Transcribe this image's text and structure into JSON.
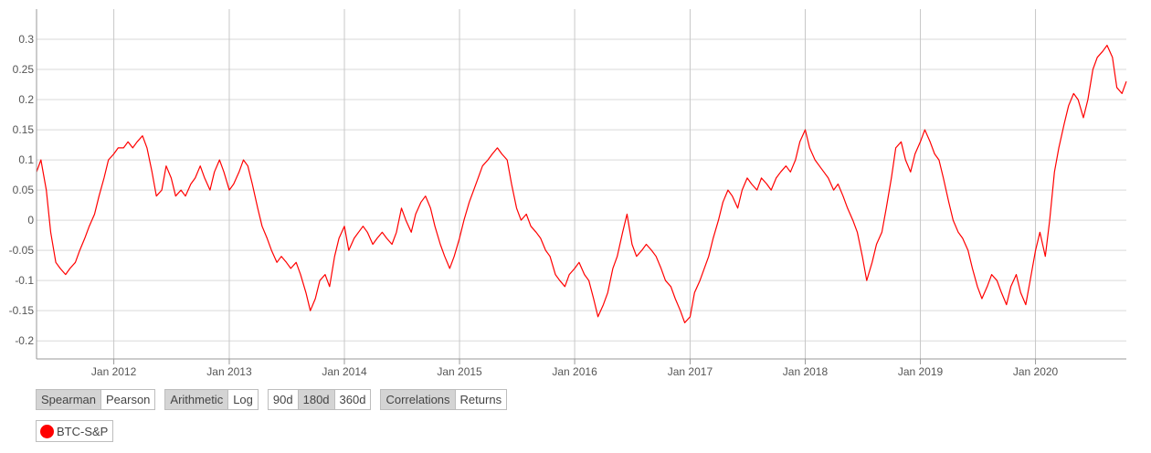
{
  "chart_data": {
    "type": "line",
    "title": "",
    "xlabel": "",
    "ylabel": "",
    "xlim": [
      "2011-05-01",
      "2020-10-15"
    ],
    "ylim": [
      -0.23,
      0.35
    ],
    "x_ticks": [
      "Jan 2012",
      "Jan 2013",
      "Jan 2014",
      "Jan 2015",
      "Jan 2016",
      "Jan 2017",
      "Jan 2018",
      "Jan 2019",
      "Jan 2020"
    ],
    "y_ticks": [
      "0.3",
      "0.25",
      "0.2",
      "0.15",
      "0.1",
      "0.05",
      "0",
      "-0.05",
      "-0.1",
      "-0.15",
      "-0.2"
    ],
    "grid": true,
    "legend_position": "bottom-left",
    "series": [
      {
        "name": "BTC-S&P",
        "color": "#ff0000",
        "points": [
          [
            "2011-05-01",
            0.08
          ],
          [
            "2011-05-15",
            0.1
          ],
          [
            "2011-06-01",
            0.05
          ],
          [
            "2011-06-15",
            -0.02
          ],
          [
            "2011-07-01",
            -0.07
          ],
          [
            "2011-07-15",
            -0.08
          ],
          [
            "2011-08-01",
            -0.09
          ],
          [
            "2011-08-15",
            -0.08
          ],
          [
            "2011-09-01",
            -0.07
          ],
          [
            "2011-09-15",
            -0.05
          ],
          [
            "2011-10-01",
            -0.03
          ],
          [
            "2011-10-15",
            -0.01
          ],
          [
            "2011-11-01",
            0.01
          ],
          [
            "2011-11-15",
            0.04
          ],
          [
            "2011-12-01",
            0.07
          ],
          [
            "2011-12-15",
            0.1
          ],
          [
            "2012-01-01",
            0.11
          ],
          [
            "2012-01-15",
            0.12
          ],
          [
            "2012-02-01",
            0.12
          ],
          [
            "2012-02-15",
            0.13
          ],
          [
            "2012-03-01",
            0.12
          ],
          [
            "2012-03-15",
            0.13
          ],
          [
            "2012-04-01",
            0.14
          ],
          [
            "2012-04-15",
            0.12
          ],
          [
            "2012-05-01",
            0.08
          ],
          [
            "2012-05-15",
            0.04
          ],
          [
            "2012-06-01",
            0.05
          ],
          [
            "2012-06-15",
            0.09
          ],
          [
            "2012-07-01",
            0.07
          ],
          [
            "2012-07-15",
            0.04
          ],
          [
            "2012-08-01",
            0.05
          ],
          [
            "2012-08-15",
            0.04
          ],
          [
            "2012-09-01",
            0.06
          ],
          [
            "2012-09-15",
            0.07
          ],
          [
            "2012-10-01",
            0.09
          ],
          [
            "2012-10-15",
            0.07
          ],
          [
            "2012-11-01",
            0.05
          ],
          [
            "2012-11-15",
            0.08
          ],
          [
            "2012-12-01",
            0.1
          ],
          [
            "2012-12-15",
            0.08
          ],
          [
            "2013-01-01",
            0.05
          ],
          [
            "2013-01-15",
            0.06
          ],
          [
            "2013-02-01",
            0.08
          ],
          [
            "2013-02-15",
            0.1
          ],
          [
            "2013-03-01",
            0.09
          ],
          [
            "2013-03-15",
            0.06
          ],
          [
            "2013-04-01",
            0.02
          ],
          [
            "2013-04-15",
            -0.01
          ],
          [
            "2013-05-01",
            -0.03
          ],
          [
            "2013-05-15",
            -0.05
          ],
          [
            "2013-06-01",
            -0.07
          ],
          [
            "2013-06-15",
            -0.06
          ],
          [
            "2013-07-01",
            -0.07
          ],
          [
            "2013-07-15",
            -0.08
          ],
          [
            "2013-08-01",
            -0.07
          ],
          [
            "2013-08-15",
            -0.09
          ],
          [
            "2013-09-01",
            -0.12
          ],
          [
            "2013-09-15",
            -0.15
          ],
          [
            "2013-10-01",
            -0.13
          ],
          [
            "2013-10-15",
            -0.1
          ],
          [
            "2013-11-01",
            -0.09
          ],
          [
            "2013-11-15",
            -0.11
          ],
          [
            "2013-12-01",
            -0.06
          ],
          [
            "2013-12-15",
            -0.03
          ],
          [
            "2014-01-01",
            -0.01
          ],
          [
            "2014-01-15",
            -0.05
          ],
          [
            "2014-02-01",
            -0.03
          ],
          [
            "2014-02-15",
            -0.02
          ],
          [
            "2014-03-01",
            -0.01
          ],
          [
            "2014-03-15",
            -0.02
          ],
          [
            "2014-04-01",
            -0.04
          ],
          [
            "2014-04-15",
            -0.03
          ],
          [
            "2014-05-01",
            -0.02
          ],
          [
            "2014-05-15",
            -0.03
          ],
          [
            "2014-06-01",
            -0.04
          ],
          [
            "2014-06-15",
            -0.02
          ],
          [
            "2014-07-01",
            0.02
          ],
          [
            "2014-07-15",
            0.0
          ],
          [
            "2014-08-01",
            -0.02
          ],
          [
            "2014-08-15",
            0.01
          ],
          [
            "2014-09-01",
            0.03
          ],
          [
            "2014-09-15",
            0.04
          ],
          [
            "2014-10-01",
            0.02
          ],
          [
            "2014-10-15",
            -0.01
          ],
          [
            "2014-11-01",
            -0.04
          ],
          [
            "2014-11-15",
            -0.06
          ],
          [
            "2014-12-01",
            -0.08
          ],
          [
            "2014-12-15",
            -0.06
          ],
          [
            "2015-01-01",
            -0.03
          ],
          [
            "2015-01-15",
            0.0
          ],
          [
            "2015-02-01",
            0.03
          ],
          [
            "2015-02-15",
            0.05
          ],
          [
            "2015-03-01",
            0.07
          ],
          [
            "2015-03-15",
            0.09
          ],
          [
            "2015-04-01",
            0.1
          ],
          [
            "2015-04-15",
            0.11
          ],
          [
            "2015-05-01",
            0.12
          ],
          [
            "2015-05-15",
            0.11
          ],
          [
            "2015-06-01",
            0.1
          ],
          [
            "2015-06-15",
            0.06
          ],
          [
            "2015-07-01",
            0.02
          ],
          [
            "2015-07-15",
            0.0
          ],
          [
            "2015-08-01",
            0.01
          ],
          [
            "2015-08-15",
            -0.01
          ],
          [
            "2015-09-01",
            -0.02
          ],
          [
            "2015-09-15",
            -0.03
          ],
          [
            "2015-10-01",
            -0.05
          ],
          [
            "2015-10-15",
            -0.06
          ],
          [
            "2015-11-01",
            -0.09
          ],
          [
            "2015-11-15",
            -0.1
          ],
          [
            "2015-12-01",
            -0.11
          ],
          [
            "2015-12-15",
            -0.09
          ],
          [
            "2016-01-01",
            -0.08
          ],
          [
            "2016-01-15",
            -0.07
          ],
          [
            "2016-02-01",
            -0.09
          ],
          [
            "2016-02-15",
            -0.1
          ],
          [
            "2016-03-01",
            -0.13
          ],
          [
            "2016-03-15",
            -0.16
          ],
          [
            "2016-04-01",
            -0.14
          ],
          [
            "2016-04-15",
            -0.12
          ],
          [
            "2016-05-01",
            -0.08
          ],
          [
            "2016-05-15",
            -0.06
          ],
          [
            "2016-06-01",
            -0.02
          ],
          [
            "2016-06-15",
            0.01
          ],
          [
            "2016-07-01",
            -0.04
          ],
          [
            "2016-07-15",
            -0.06
          ],
          [
            "2016-08-01",
            -0.05
          ],
          [
            "2016-08-15",
            -0.04
          ],
          [
            "2016-09-01",
            -0.05
          ],
          [
            "2016-09-15",
            -0.06
          ],
          [
            "2016-10-01",
            -0.08
          ],
          [
            "2016-10-15",
            -0.1
          ],
          [
            "2016-11-01",
            -0.11
          ],
          [
            "2016-11-15",
            -0.13
          ],
          [
            "2016-12-01",
            -0.15
          ],
          [
            "2016-12-15",
            -0.17
          ],
          [
            "2017-01-01",
            -0.16
          ],
          [
            "2017-01-15",
            -0.12
          ],
          [
            "2017-02-01",
            -0.1
          ],
          [
            "2017-02-15",
            -0.08
          ],
          [
            "2017-03-01",
            -0.06
          ],
          [
            "2017-03-15",
            -0.03
          ],
          [
            "2017-04-01",
            0.0
          ],
          [
            "2017-04-15",
            0.03
          ],
          [
            "2017-05-01",
            0.05
          ],
          [
            "2017-05-15",
            0.04
          ],
          [
            "2017-06-01",
            0.02
          ],
          [
            "2017-06-15",
            0.05
          ],
          [
            "2017-07-01",
            0.07
          ],
          [
            "2017-07-15",
            0.06
          ],
          [
            "2017-08-01",
            0.05
          ],
          [
            "2017-08-15",
            0.07
          ],
          [
            "2017-09-01",
            0.06
          ],
          [
            "2017-09-15",
            0.05
          ],
          [
            "2017-10-01",
            0.07
          ],
          [
            "2017-10-15",
            0.08
          ],
          [
            "2017-11-01",
            0.09
          ],
          [
            "2017-11-15",
            0.08
          ],
          [
            "2017-12-01",
            0.1
          ],
          [
            "2017-12-15",
            0.13
          ],
          [
            "2018-01-01",
            0.15
          ],
          [
            "2018-01-15",
            0.12
          ],
          [
            "2018-02-01",
            0.1
          ],
          [
            "2018-02-15",
            0.09
          ],
          [
            "2018-03-01",
            0.08
          ],
          [
            "2018-03-15",
            0.07
          ],
          [
            "2018-04-01",
            0.05
          ],
          [
            "2018-04-15",
            0.06
          ],
          [
            "2018-05-01",
            0.04
          ],
          [
            "2018-05-15",
            0.02
          ],
          [
            "2018-06-01",
            0.0
          ],
          [
            "2018-06-15",
            -0.02
          ],
          [
            "2018-07-01",
            -0.06
          ],
          [
            "2018-07-15",
            -0.1
          ],
          [
            "2018-08-01",
            -0.07
          ],
          [
            "2018-08-15",
            -0.04
          ],
          [
            "2018-09-01",
            -0.02
          ],
          [
            "2018-09-15",
            0.02
          ],
          [
            "2018-10-01",
            0.07
          ],
          [
            "2018-10-15",
            0.12
          ],
          [
            "2018-11-01",
            0.13
          ],
          [
            "2018-11-15",
            0.1
          ],
          [
            "2018-12-01",
            0.08
          ],
          [
            "2018-12-15",
            0.11
          ],
          [
            "2019-01-01",
            0.13
          ],
          [
            "2019-01-15",
            0.15
          ],
          [
            "2019-02-01",
            0.13
          ],
          [
            "2019-02-15",
            0.11
          ],
          [
            "2019-03-01",
            0.1
          ],
          [
            "2019-03-15",
            0.07
          ],
          [
            "2019-04-01",
            0.03
          ],
          [
            "2019-04-15",
            0.0
          ],
          [
            "2019-05-01",
            -0.02
          ],
          [
            "2019-05-15",
            -0.03
          ],
          [
            "2019-06-01",
            -0.05
          ],
          [
            "2019-06-15",
            -0.08
          ],
          [
            "2019-07-01",
            -0.11
          ],
          [
            "2019-07-15",
            -0.13
          ],
          [
            "2019-08-01",
            -0.11
          ],
          [
            "2019-08-15",
            -0.09
          ],
          [
            "2019-09-01",
            -0.1
          ],
          [
            "2019-09-15",
            -0.12
          ],
          [
            "2019-10-01",
            -0.14
          ],
          [
            "2019-10-15",
            -0.11
          ],
          [
            "2019-11-01",
            -0.09
          ],
          [
            "2019-11-15",
            -0.12
          ],
          [
            "2019-12-01",
            -0.14
          ],
          [
            "2019-12-15",
            -0.1
          ],
          [
            "2020-01-01",
            -0.05
          ],
          [
            "2020-01-15",
            -0.02
          ],
          [
            "2020-02-01",
            -0.06
          ],
          [
            "2020-02-15",
            0.0
          ],
          [
            "2020-03-01",
            0.08
          ],
          [
            "2020-03-15",
            0.12
          ],
          [
            "2020-04-01",
            0.16
          ],
          [
            "2020-04-15",
            0.19
          ],
          [
            "2020-05-01",
            0.21
          ],
          [
            "2020-05-15",
            0.2
          ],
          [
            "2020-06-01",
            0.17
          ],
          [
            "2020-06-15",
            0.2
          ],
          [
            "2020-07-01",
            0.25
          ],
          [
            "2020-07-15",
            0.27
          ],
          [
            "2020-08-01",
            0.28
          ],
          [
            "2020-08-15",
            0.29
          ],
          [
            "2020-09-01",
            0.27
          ],
          [
            "2020-09-15",
            0.22
          ],
          [
            "2020-10-01",
            0.21
          ],
          [
            "2020-10-15",
            0.23
          ]
        ]
      }
    ]
  },
  "controls": {
    "groups": [
      {
        "name": "correlation-method",
        "buttons": [
          {
            "label": "Spearman",
            "active": true
          },
          {
            "label": "Pearson",
            "active": false
          }
        ]
      },
      {
        "name": "scale",
        "buttons": [
          {
            "label": "Arithmetic",
            "active": true
          },
          {
            "label": "Log",
            "active": false
          }
        ]
      },
      {
        "name": "window",
        "buttons": [
          {
            "label": "90d",
            "active": false
          },
          {
            "label": "180d",
            "active": true
          },
          {
            "label": "360d",
            "active": false
          }
        ]
      },
      {
        "name": "view",
        "buttons": [
          {
            "label": "Correlations",
            "active": true
          },
          {
            "label": "Returns",
            "active": false
          }
        ]
      }
    ]
  },
  "legend": {
    "label": "BTC-S&P",
    "color": "#ff0000"
  }
}
